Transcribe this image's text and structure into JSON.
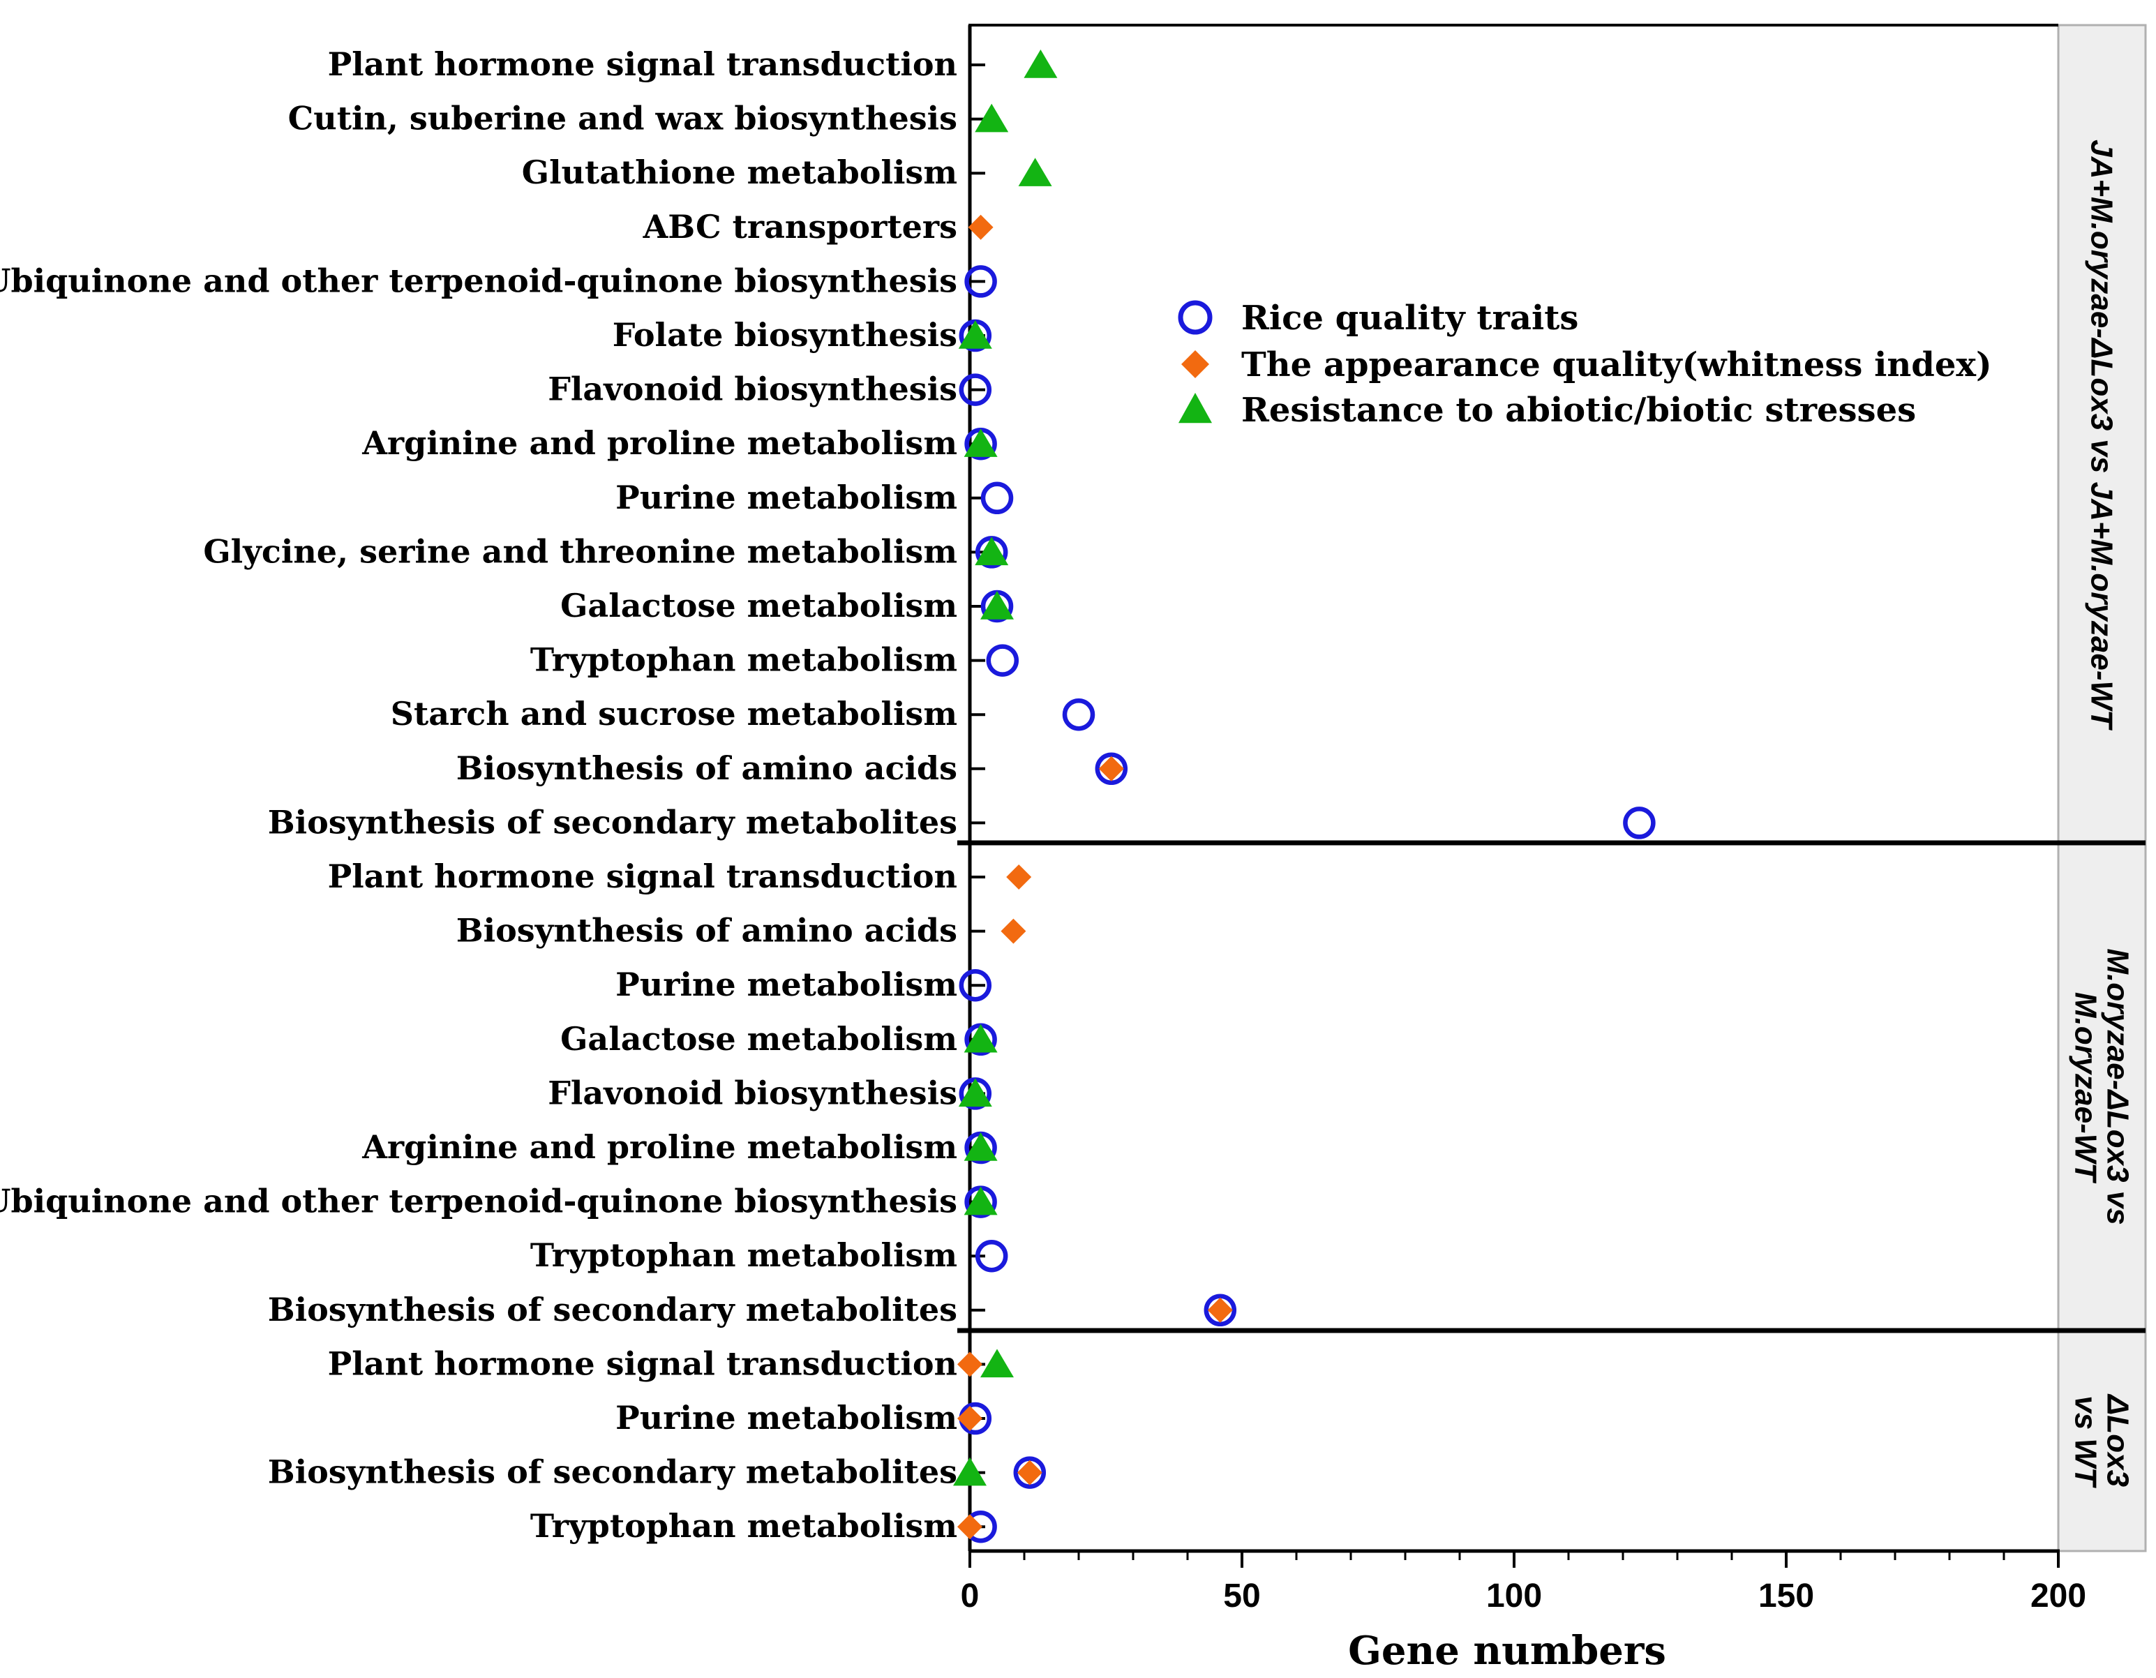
{
  "chart_data": {
    "type": "scatter",
    "xlabel": "Gene numbers",
    "xlim": [
      0,
      200
    ],
    "x_ticks": [
      "0",
      "50",
      "100",
      "150",
      "200"
    ],
    "colors": {
      "rice_quality": "#1a1adc",
      "appearance": "#f26a10",
      "resistance": "#13b413",
      "axis": "#000000",
      "strip_bg": "#eeeeee",
      "strip_border": "#b0b0b0"
    },
    "legend": [
      {
        "key": "rice_quality",
        "label": "Rice quality traits",
        "marker": "circle-open"
      },
      {
        "key": "appearance",
        "label": "The appearance quality(whitness index)",
        "marker": "diamond"
      },
      {
        "key": "resistance",
        "label": "Resistance to abiotic/biotic stresses",
        "marker": "triangle"
      }
    ],
    "panels": [
      {
        "title_lines": [
          "JA+M.oryzae-ΔLox3 vs JA+M.oryzae-WT"
        ],
        "rows": [
          {
            "label": "Plant hormone signal transduction",
            "rice_quality": null,
            "appearance": null,
            "resistance": 13
          },
          {
            "label": "Cutin, suberine and wax biosynthesis",
            "rice_quality": null,
            "appearance": null,
            "resistance": 4
          },
          {
            "label": "Glutathione metabolism",
            "rice_quality": null,
            "appearance": null,
            "resistance": 12
          },
          {
            "label": "ABC transporters",
            "rice_quality": null,
            "appearance": 2,
            "resistance": null
          },
          {
            "label": "Ubiquinone and other terpenoid-quinone biosynthesis",
            "rice_quality": 2,
            "appearance": null,
            "resistance": null
          },
          {
            "label": "Folate biosynthesis",
            "rice_quality": 1,
            "appearance": null,
            "resistance": 1
          },
          {
            "label": "Flavonoid biosynthesis",
            "rice_quality": 1,
            "appearance": null,
            "resistance": null
          },
          {
            "label": "Arginine and proline metabolism",
            "rice_quality": 2,
            "appearance": null,
            "resistance": 2
          },
          {
            "label": "Purine metabolism",
            "rice_quality": 5,
            "appearance": null,
            "resistance": null
          },
          {
            "label": "Glycine, serine and threonine metabolism",
            "rice_quality": 4,
            "appearance": null,
            "resistance": 4
          },
          {
            "label": "Galactose metabolism",
            "rice_quality": 5,
            "appearance": null,
            "resistance": 5
          },
          {
            "label": "Tryptophan metabolism",
            "rice_quality": 6,
            "appearance": null,
            "resistance": null
          },
          {
            "label": "Starch and sucrose metabolism",
            "rice_quality": 20,
            "appearance": null,
            "resistance": null
          },
          {
            "label": "Biosynthesis of amino acids",
            "rice_quality": 26,
            "appearance": 26,
            "resistance": null
          },
          {
            "label": "Biosynthesis of secondary metabolites",
            "rice_quality": 123,
            "appearance": null,
            "resistance": null
          }
        ]
      },
      {
        "title_lines": [
          "M.oryzae-ΔLox3 vs",
          "M.oryzae-WT"
        ],
        "rows": [
          {
            "label": "Plant hormone signal transduction",
            "rice_quality": null,
            "appearance": 9,
            "resistance": null
          },
          {
            "label": "Biosynthesis of amino acids",
            "rice_quality": null,
            "appearance": 8,
            "resistance": null
          },
          {
            "label": "Purine metabolism",
            "rice_quality": 1,
            "appearance": null,
            "resistance": null
          },
          {
            "label": "Galactose metabolism",
            "rice_quality": 2,
            "appearance": null,
            "resistance": 2
          },
          {
            "label": "Flavonoid biosynthesis",
            "rice_quality": 1,
            "appearance": null,
            "resistance": 1
          },
          {
            "label": "Arginine and proline metabolism",
            "rice_quality": 2,
            "appearance": null,
            "resistance": 2
          },
          {
            "label": "Ubiquinone and other terpenoid-quinone biosynthesis",
            "rice_quality": 2,
            "appearance": null,
            "resistance": 2
          },
          {
            "label": "Tryptophan metabolism",
            "rice_quality": 4,
            "appearance": null,
            "resistance": null
          },
          {
            "label": "Biosynthesis of secondary metabolites",
            "rice_quality": 46,
            "appearance": 46,
            "resistance": null
          }
        ]
      },
      {
        "title_lines": [
          "ΔLox3",
          "vs WT"
        ],
        "rows": [
          {
            "label": "Plant hormone signal transduction",
            "rice_quality": null,
            "appearance": 0,
            "resistance": 5
          },
          {
            "label": "Purine metabolism",
            "rice_quality": 1,
            "appearance": 0,
            "resistance": null
          },
          {
            "label": "Biosynthesis of secondary metabolites",
            "rice_quality": 11,
            "appearance": 11,
            "resistance": 0
          },
          {
            "label": "Tryptophan metabolism",
            "rice_quality": 2,
            "appearance": 0,
            "resistance": null
          }
        ]
      }
    ]
  }
}
